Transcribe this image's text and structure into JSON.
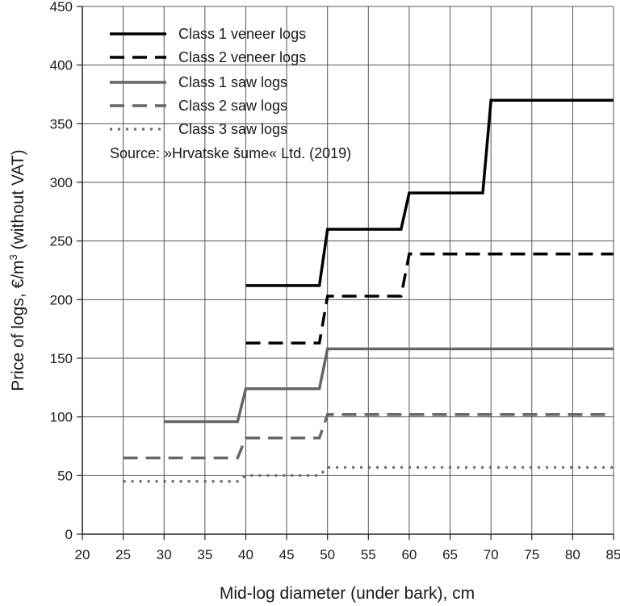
{
  "chart_data": {
    "type": "line",
    "step": true,
    "xlabel": "Mid-log diameter (under bark), cm",
    "ylabel_main": "Price of logs, €/m",
    "ylabel_sup": "3",
    "ylabel_tail": " (without VAT)",
    "xlim": [
      20,
      85
    ],
    "ylim": [
      0,
      450
    ],
    "x_ticks": [
      "20",
      "25",
      "30",
      "35",
      "40",
      "45",
      "50",
      "55",
      "60",
      "65",
      "70",
      "75",
      "80",
      "85"
    ],
    "y_ticks": [
      "0",
      "50",
      "100",
      "150",
      "200",
      "250",
      "300",
      "350",
      "400",
      "450"
    ],
    "grid": true,
    "legend_position": "top-left",
    "source_note": "Source: »Hrvatske šume« Ltd. (2019)",
    "series": [
      {
        "name": "Class 1 veneer logs",
        "color": "#000000",
        "style": "solid",
        "points": [
          [
            40,
            212
          ],
          [
            49,
            212
          ],
          [
            50,
            260
          ],
          [
            59,
            260
          ],
          [
            60,
            291
          ],
          [
            69,
            291
          ],
          [
            70,
            370
          ],
          [
            85,
            370
          ]
        ]
      },
      {
        "name": "Class 2 veneer logs",
        "color": "#000000",
        "style": "dashed",
        "points": [
          [
            40,
            163
          ],
          [
            49,
            163
          ],
          [
            50,
            203
          ],
          [
            59,
            203
          ],
          [
            60,
            239
          ],
          [
            85,
            239
          ]
        ]
      },
      {
        "name": "Class 1 saw logs",
        "color": "#666666",
        "style": "solid",
        "points": [
          [
            30,
            96
          ],
          [
            39,
            96
          ],
          [
            40,
            124
          ],
          [
            49,
            124
          ],
          [
            50,
            158
          ],
          [
            85,
            158
          ]
        ]
      },
      {
        "name": "Class 2 saw logs",
        "color": "#666666",
        "style": "dashed",
        "points": [
          [
            25,
            65
          ],
          [
            39,
            65
          ],
          [
            40,
            82
          ],
          [
            49,
            82
          ],
          [
            50,
            102
          ],
          [
            85,
            102
          ]
        ]
      },
      {
        "name": "Class 3 saw logs",
        "color": "#666666",
        "style": "dotted",
        "points": [
          [
            25,
            45
          ],
          [
            39,
            45
          ],
          [
            40,
            50
          ],
          [
            49,
            50
          ],
          [
            50,
            57
          ],
          [
            85,
            57
          ]
        ]
      }
    ]
  }
}
